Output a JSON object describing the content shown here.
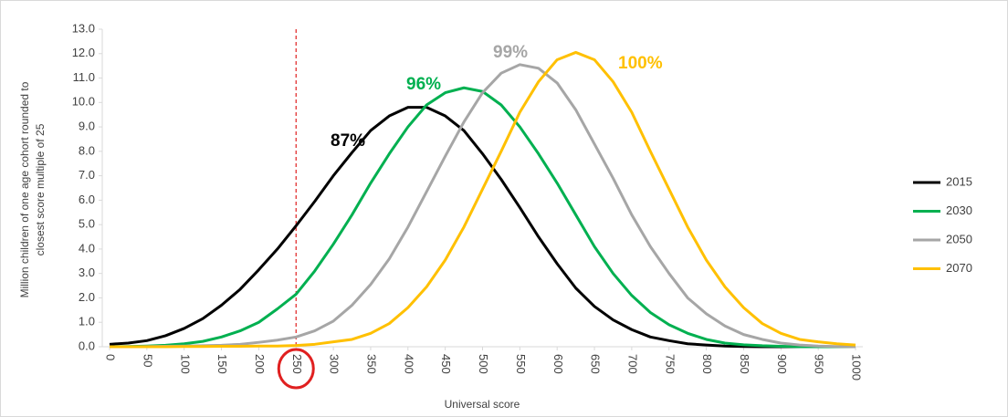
{
  "chart_data": {
    "type": "line",
    "ylabel": [
      "Million children of one age cohort rounded to",
      "closest score multiple of 25"
    ],
    "xlabel": "Universal score",
    "x": [
      0,
      25,
      50,
      75,
      100,
      125,
      150,
      175,
      200,
      225,
      250,
      275,
      300,
      325,
      350,
      375,
      400,
      425,
      450,
      475,
      500,
      525,
      550,
      575,
      600,
      625,
      650,
      675,
      700,
      725,
      750,
      775,
      800,
      825,
      850,
      875,
      900,
      925,
      950,
      975,
      1000
    ],
    "xlim": [
      0,
      1000
    ],
    "xticks": [
      0,
      50,
      100,
      150,
      200,
      250,
      300,
      350,
      400,
      450,
      500,
      550,
      600,
      650,
      700,
      750,
      800,
      850,
      900,
      950,
      1000
    ],
    "ylim": [
      0,
      13
    ],
    "yticks": [
      {
        "value": 0,
        "label": "0.0"
      },
      {
        "value": 1,
        "label": "1.0"
      },
      {
        "value": 2,
        "label": "2.0"
      },
      {
        "value": 3,
        "label": "3.0"
      },
      {
        "value": 4,
        "label": "4.0"
      },
      {
        "value": 5,
        "label": "5.0"
      },
      {
        "value": 6,
        "label": "6.0"
      },
      {
        "value": 7,
        "label": "7.0"
      },
      {
        "value": 8,
        "label": "8.0"
      },
      {
        "value": 9,
        "label": "9.0"
      },
      {
        "value": 10,
        "label": "10.0"
      },
      {
        "value": 11,
        "label": "11.0"
      },
      {
        "value": 12,
        "label": "12.0"
      },
      {
        "value": 13,
        "label": "13.0"
      }
    ],
    "reference_line": {
      "x": 250,
      "color": "#e02020"
    },
    "legend": "right",
    "series": [
      {
        "name": "2015",
        "color": "#000000",
        "annotation": "87%",
        "values": [
          0.1,
          0.15,
          0.25,
          0.45,
          0.75,
          1.15,
          1.7,
          2.35,
          3.15,
          4.0,
          4.95,
          5.95,
          7.0,
          7.95,
          8.85,
          9.45,
          9.8,
          9.8,
          9.45,
          8.85,
          7.9,
          6.85,
          5.7,
          4.5,
          3.4,
          2.4,
          1.65,
          1.1,
          0.7,
          0.4,
          0.25,
          0.12,
          0.07,
          0.03,
          0.01,
          0,
          0,
          0,
          0,
          0,
          0
        ]
      },
      {
        "name": "2030",
        "color": "#00b050",
        "annotation": "96%",
        "values": [
          0,
          0.01,
          0.03,
          0.06,
          0.12,
          0.22,
          0.4,
          0.65,
          1.0,
          1.55,
          2.15,
          3.1,
          4.2,
          5.4,
          6.7,
          7.9,
          9.0,
          9.9,
          10.4,
          10.6,
          10.45,
          9.9,
          9.0,
          7.9,
          6.7,
          5.4,
          4.1,
          3.0,
          2.1,
          1.4,
          0.9,
          0.55,
          0.3,
          0.15,
          0.08,
          0.04,
          0.02,
          0,
          0,
          0,
          0
        ]
      },
      {
        "name": "2050",
        "color": "#a6a6a6",
        "annotation": "99%",
        "values": [
          0,
          0,
          0.01,
          0.02,
          0.03,
          0.04,
          0.06,
          0.1,
          0.18,
          0.27,
          0.4,
          0.65,
          1.05,
          1.7,
          2.55,
          3.6,
          4.9,
          6.35,
          7.8,
          9.2,
          10.4,
          11.2,
          11.55,
          11.4,
          10.8,
          9.7,
          8.3,
          6.9,
          5.4,
          4.1,
          3.0,
          2.0,
          1.35,
          0.85,
          0.5,
          0.3,
          0.15,
          0.07,
          0.03,
          0.01,
          0
        ]
      },
      {
        "name": "2070",
        "color": "#ffc000",
        "annotation": "100%",
        "values": [
          0,
          0,
          0,
          0,
          0.01,
          0.01,
          0.02,
          0.02,
          0.03,
          0.03,
          0.05,
          0.1,
          0.2,
          0.3,
          0.55,
          0.95,
          1.6,
          2.45,
          3.55,
          4.9,
          6.45,
          8.0,
          9.6,
          10.85,
          11.75,
          12.05,
          11.75,
          10.85,
          9.6,
          8.0,
          6.45,
          4.9,
          3.55,
          2.45,
          1.6,
          0.95,
          0.55,
          0.3,
          0.2,
          0.12,
          0.07
        ]
      }
    ]
  }
}
